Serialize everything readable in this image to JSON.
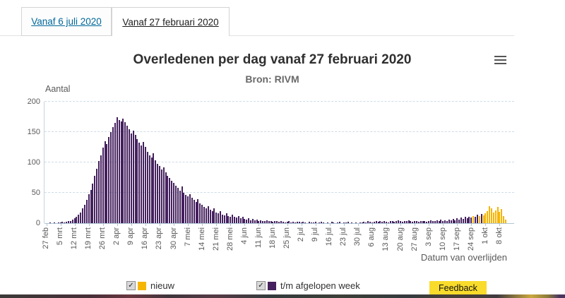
{
  "tabs": [
    {
      "label": "Vanaf 6 juli 2020",
      "active": false
    },
    {
      "label": "Vanaf 27 februari 2020",
      "active": true
    }
  ],
  "chart": {
    "title": "Overledenen per dag vanaf 27 februari 2020",
    "subtitle": "Bron: RIVM",
    "menu_icon": "hamburger-menu"
  },
  "legend": [
    {
      "label": "nieuw",
      "checked": true,
      "check_glyph": "✓",
      "color": "#f6b500"
    },
    {
      "label": "t/m afgelopen week",
      "checked": true,
      "check_glyph": "✓",
      "color": "#45215f"
    }
  ],
  "feedback": {
    "label": "Feedback",
    "bg": "#f9db2b"
  },
  "chart_data": {
    "type": "bar",
    "title": "Overledenen per dag vanaf 27 februari 2020",
    "subtitle": "Bron: RIVM",
    "ylabel": "Aantal",
    "xlabel": "Datum van overlijden",
    "ylim": [
      0,
      200
    ],
    "yticks": [
      0,
      50,
      100,
      150,
      200
    ],
    "grid": "dashed-horizontal",
    "legend_position": "bottom",
    "x_tick_labels": [
      "27 feb",
      "5 mrt",
      "12 mrt",
      "19 mrt",
      "26 mrt",
      "2 apr",
      "9 apr",
      "16 apr",
      "23 apr",
      "30 apr",
      "7 mei",
      "14 mei",
      "21 mei",
      "28 mei",
      "4 jun",
      "11 jun",
      "18 jun",
      "25 jun",
      "2 jul",
      "9 jul",
      "16 jul",
      "23 jul",
      "30 jul",
      "6 aug",
      "13 aug",
      "20 aug",
      "27 aug",
      "3 sep",
      "10 sep",
      "17 sep",
      "24 sep",
      "1 okt",
      "8 okt"
    ],
    "days_per_tick": 7,
    "series": [
      {
        "name": "t/m afgelopen week",
        "color": "#45215f"
      },
      {
        "name": "nieuw",
        "color": "#f6b500"
      }
    ],
    "values": [
      0,
      0,
      1,
      0,
      1,
      0,
      1,
      1,
      2,
      1,
      2,
      3,
      4,
      6,
      8,
      10,
      14,
      18,
      24,
      30,
      38,
      48,
      55,
      65,
      78,
      90,
      102,
      112,
      125,
      135,
      130,
      142,
      150,
      158,
      165,
      175,
      170,
      168,
      172,
      166,
      160,
      155,
      148,
      152,
      145,
      138,
      132,
      128,
      134,
      126,
      118,
      112,
      108,
      115,
      104,
      98,
      94,
      88,
      92,
      84,
      78,
      74,
      70,
      66,
      62,
      58,
      54,
      60,
      50,
      46,
      44,
      48,
      42,
      38,
      35,
      40,
      32,
      30,
      27,
      24,
      28,
      22,
      20,
      24,
      18,
      16,
      20,
      14,
      13,
      16,
      12,
      11,
      14,
      10,
      9,
      12,
      8,
      10,
      7,
      6,
      8,
      5,
      7,
      5,
      6,
      4,
      5,
      3,
      4,
      5,
      3,
      4,
      2,
      3,
      4,
      2,
      3,
      2,
      1,
      2,
      3,
      1,
      2,
      1,
      2,
      2,
      1,
      2,
      1,
      0,
      2,
      1,
      1,
      2,
      0,
      1,
      2,
      1,
      0,
      1,
      0,
      2,
      1,
      0,
      1,
      2,
      0,
      1,
      1,
      2,
      0,
      1,
      0,
      1,
      0,
      1,
      1,
      2,
      1,
      3,
      2,
      1,
      2,
      3,
      2,
      4,
      2,
      3,
      2,
      1,
      3,
      4,
      2,
      3,
      5,
      3,
      2,
      4,
      3,
      5,
      3,
      2,
      4,
      3,
      2,
      3,
      4,
      3,
      2,
      3,
      5,
      4,
      3,
      5,
      4,
      6,
      3,
      5,
      4,
      6,
      5,
      7,
      5,
      8,
      6,
      9,
      7,
      10,
      8,
      11,
      9,
      12,
      10,
      14,
      12,
      15,
      13,
      16,
      20,
      28,
      24,
      17,
      21,
      27,
      19,
      23,
      12,
      6
    ],
    "new_series_from_index": 217,
    "extra_new_indices": [
      211,
      214,
      216
    ]
  }
}
